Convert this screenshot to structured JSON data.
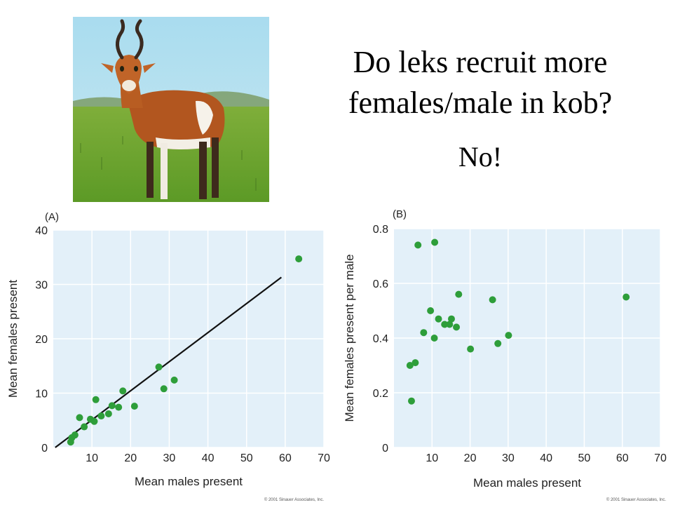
{
  "slide": {
    "title_line1": "Do leks recruit more",
    "title_line2": "females/male in kob?",
    "answer": "No!"
  },
  "photo": {
    "subject": "kob antelope"
  },
  "colors": {
    "plot_bg": "#e3f0f9",
    "grid": "#ffffff",
    "point": "#2e9e3a",
    "line": "#111111"
  },
  "chart_data": [
    {
      "type": "scatter",
      "panel_label": "(A)",
      "xlabel": "Mean males present",
      "ylabel": "Mean females present",
      "xlim": [
        0,
        70
      ],
      "ylim": [
        0,
        40
      ],
      "xticks": [
        "10",
        "20",
        "30",
        "40",
        "50",
        "60",
        "70"
      ],
      "yticks": [
        "0",
        "10",
        "20",
        "30",
        "40"
      ],
      "grid": true,
      "points": [
        {
          "x": 4.5,
          "y": 1.0
        },
        {
          "x": 4.8,
          "y": 1.8
        },
        {
          "x": 5.6,
          "y": 2.3
        },
        {
          "x": 6.8,
          "y": 5.5
        },
        {
          "x": 8.0,
          "y": 3.8
        },
        {
          "x": 9.6,
          "y": 5.2
        },
        {
          "x": 10.6,
          "y": 4.8
        },
        {
          "x": 11.0,
          "y": 8.8
        },
        {
          "x": 12.4,
          "y": 5.8
        },
        {
          "x": 14.3,
          "y": 6.2
        },
        {
          "x": 15.2,
          "y": 7.7
        },
        {
          "x": 16.9,
          "y": 7.4
        },
        {
          "x": 18.0,
          "y": 10.4
        },
        {
          "x": 21.0,
          "y": 7.6
        },
        {
          "x": 27.3,
          "y": 14.8
        },
        {
          "x": 28.6,
          "y": 10.8
        },
        {
          "x": 31.3,
          "y": 12.4
        },
        {
          "x": 63.5,
          "y": 34.7
        }
      ],
      "fit_line": {
        "x": [
          0.5,
          59.0
        ],
        "y": [
          0.0,
          31.3
        ]
      },
      "copyright": "© 2001 Sinauer Associates, Inc."
    },
    {
      "type": "scatter",
      "panel_label": "(B)",
      "xlabel": "Mean males present",
      "ylabel": "Mean females present per male",
      "xlim": [
        0,
        70
      ],
      "ylim": [
        0,
        0.8
      ],
      "xticks": [
        "10",
        "20",
        "30",
        "40",
        "50",
        "60",
        "70"
      ],
      "yticks": [
        "0",
        "0.2",
        "0.4",
        "0.6",
        "0.8"
      ],
      "grid": true,
      "points": [
        {
          "x": 4.2,
          "y": 0.3
        },
        {
          "x": 4.6,
          "y": 0.17
        },
        {
          "x": 5.6,
          "y": 0.31
        },
        {
          "x": 6.3,
          "y": 0.74
        },
        {
          "x": 7.8,
          "y": 0.42
        },
        {
          "x": 9.6,
          "y": 0.5
        },
        {
          "x": 10.7,
          "y": 0.75
        },
        {
          "x": 10.6,
          "y": 0.4
        },
        {
          "x": 11.7,
          "y": 0.47
        },
        {
          "x": 13.3,
          "y": 0.45
        },
        {
          "x": 14.6,
          "y": 0.45
        },
        {
          "x": 15.1,
          "y": 0.47
        },
        {
          "x": 16.4,
          "y": 0.44
        },
        {
          "x": 17.0,
          "y": 0.56
        },
        {
          "x": 20.1,
          "y": 0.36
        },
        {
          "x": 25.9,
          "y": 0.54
        },
        {
          "x": 27.3,
          "y": 0.38
        },
        {
          "x": 30.1,
          "y": 0.41
        },
        {
          "x": 61.0,
          "y": 0.55
        }
      ],
      "copyright": "© 2001 Sinauer Associates, Inc."
    }
  ]
}
